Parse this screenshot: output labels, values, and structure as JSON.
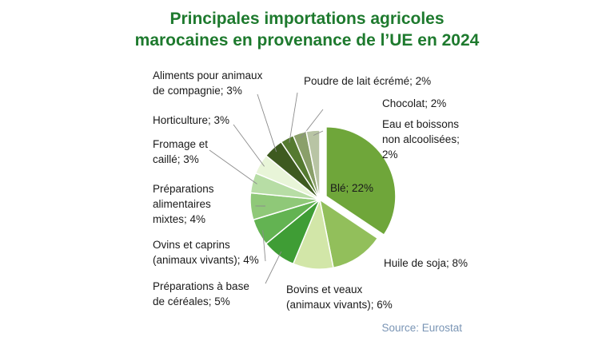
{
  "chart_data": {
    "type": "pie",
    "title_lines": [
      "Principales importations agricoles",
      "marocaines en provenance de l’UE en 2024"
    ],
    "source": "Source: Eurostat",
    "slices": [
      {
        "label_lines": [
          "Blé; 22%"
        ],
        "value": 22,
        "color": "#6fa63a",
        "exploded": true
      },
      {
        "label_lines": [
          "Huile de soja; 8%"
        ],
        "value": 8,
        "color": "#92bf5b"
      },
      {
        "label_lines": [
          "Bovins et veaux",
          "(animaux vivants); 6%"
        ],
        "value": 6,
        "color": "#d2e6a8"
      },
      {
        "label_lines": [
          "Préparations à base",
          "de céréales; 5%"
        ],
        "value": 5,
        "color": "#3f9d35"
      },
      {
        "label_lines": [
          "Ovins et caprins",
          "(animaux vivants); 4%"
        ],
        "value": 4,
        "color": "#63b352"
      },
      {
        "label_lines": [
          "Préparations",
          "alimentaires",
          "mixtes; 4%"
        ],
        "value": 4,
        "color": "#8fc878"
      },
      {
        "label_lines": [
          "Fromage et",
          "caillé; 3%"
        ],
        "value": 3,
        "color": "#b7dda5"
      },
      {
        "label_lines": [
          "Horticulture; 3%"
        ],
        "value": 3,
        "color": "#e8f5d8"
      },
      {
        "label_lines": [
          "Aliments pour animaux",
          "de compagnie; 3%"
        ],
        "value": 3,
        "color": "#3e5a20"
      },
      {
        "label_lines": [
          "Poudre de lait écrémé; 2%"
        ],
        "value": 2,
        "color": "#557a30"
      },
      {
        "label_lines": [
          "Chocolat; 2%"
        ],
        "value": 2,
        "color": "#8a9f6a"
      },
      {
        "label_lines": [
          "Eau et boissons",
          "non alcoolisées;",
          "2%"
        ],
        "value": 2,
        "color": "#b8c4a4"
      }
    ]
  }
}
